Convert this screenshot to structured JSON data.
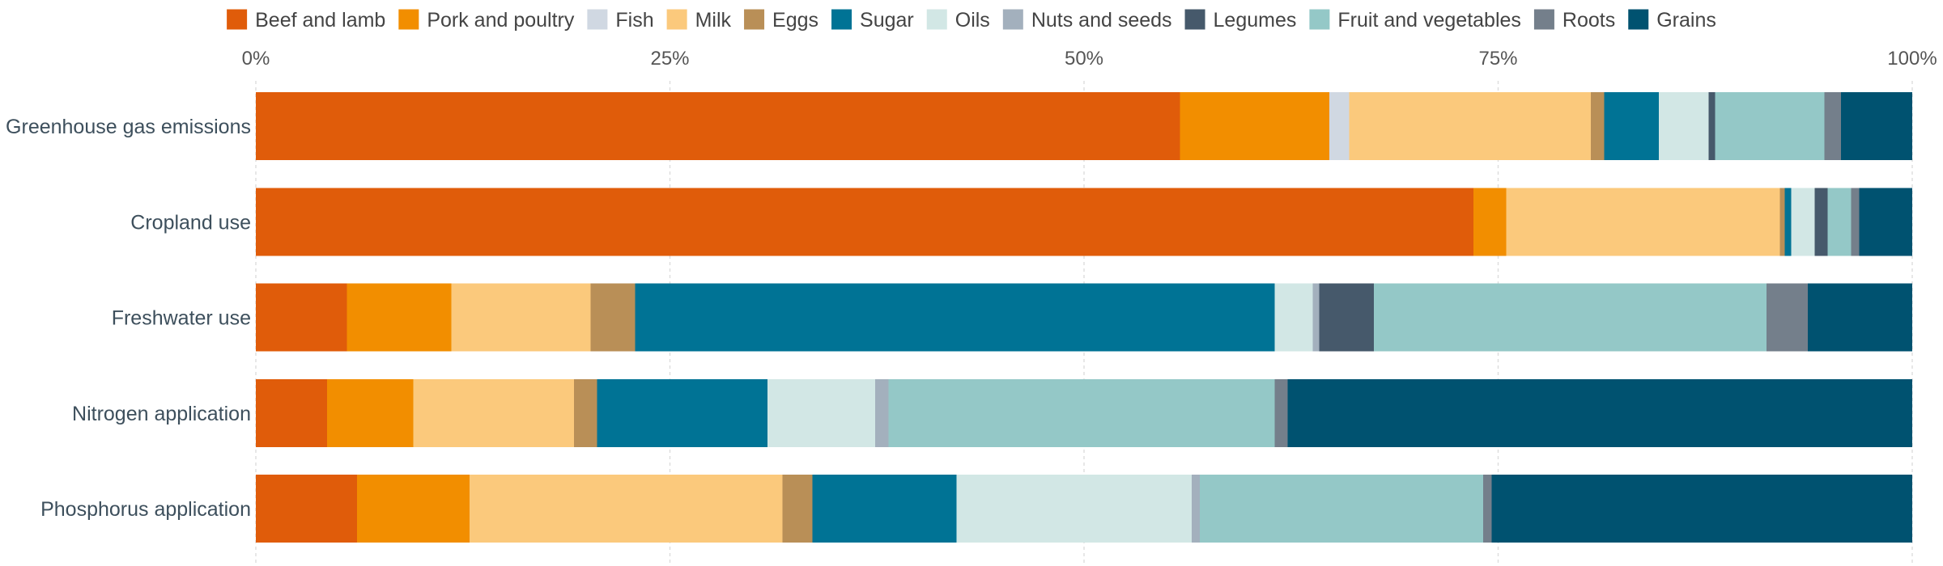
{
  "chart_data": {
    "type": "bar",
    "orientation": "horizontal",
    "stacked": true,
    "normalized": true,
    "title": "",
    "xlabel": "",
    "ylabel": "",
    "xlim": [
      0,
      100
    ],
    "x_ticks": [
      "0%",
      "25%",
      "50%",
      "75%",
      "100%"
    ],
    "x_tick_values": [
      0,
      25,
      50,
      75,
      100
    ],
    "grid": true,
    "legend_position": "top",
    "categories": [
      "Greenhouse gas emissions",
      "Cropland use",
      "Freshwater use",
      "Nitrogen application",
      "Phosphorus application"
    ],
    "series": [
      {
        "name": "Beef and lamb",
        "color": "#e05c0a",
        "values": [
          55.8,
          73.5,
          5.5,
          4.3,
          6.1
        ]
      },
      {
        "name": "Pork and poultry",
        "color": "#f28e00",
        "values": [
          9.0,
          2.0,
          6.3,
          5.2,
          6.8
        ]
      },
      {
        "name": "Fish",
        "color": "#d0d8e2",
        "values": [
          1.2,
          0.0,
          0.0,
          0.0,
          0.0
        ]
      },
      {
        "name": "Milk",
        "color": "#fbc97c",
        "values": [
          14.6,
          16.5,
          8.4,
          9.7,
          18.9
        ]
      },
      {
        "name": "Eggs",
        "color": "#b98f57",
        "values": [
          0.8,
          0.3,
          2.7,
          1.4,
          1.8
        ]
      },
      {
        "name": "Sugar",
        "color": "#007395",
        "values": [
          3.3,
          0.4,
          38.6,
          10.3,
          8.7
        ]
      },
      {
        "name": "Oils",
        "color": "#d2e7e5",
        "values": [
          3.0,
          1.4,
          2.3,
          6.5,
          14.2
        ]
      },
      {
        "name": "Nuts and seeds",
        "color": "#a3b0bd",
        "values": [
          0.0,
          0.0,
          0.4,
          0.8,
          0.5
        ]
      },
      {
        "name": "Legumes",
        "color": "#46596b",
        "values": [
          0.4,
          0.8,
          3.3,
          0.0,
          0.0
        ]
      },
      {
        "name": "Fruit and vegetables",
        "color": "#94c8c7",
        "values": [
          6.6,
          1.4,
          23.7,
          23.3,
          17.1
        ]
      },
      {
        "name": "Roots",
        "color": "#747f8b",
        "values": [
          1.0,
          0.5,
          2.5,
          0.8,
          0.5
        ]
      },
      {
        "name": "Grains",
        "color": "#005270",
        "values": [
          4.3,
          3.2,
          6.3,
          37.7,
          25.4
        ]
      }
    ]
  }
}
